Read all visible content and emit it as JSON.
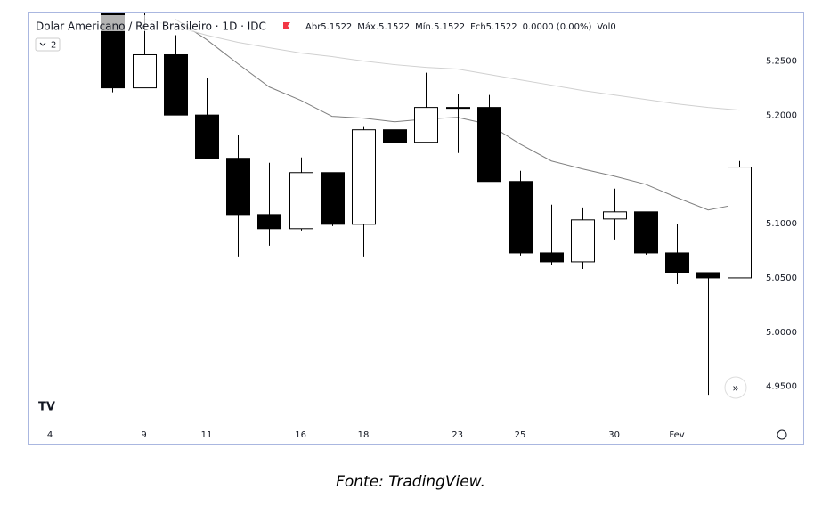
{
  "chart_data": {
    "type": "candlestick",
    "title": "Dolar Americano / Real Brasileiro · 1D · IDC",
    "ohlc_legend": [
      "Abr5.1522",
      "Máx.5.1522",
      "Mín.5.1522",
      "Fch5.1522",
      "0.0000 (0.00%)",
      "Vol0"
    ],
    "indicator_count": "2",
    "caption": "Fonte: TradingView.",
    "categories": [
      "4",
      null,
      null,
      "9",
      null,
      "11",
      null,
      null,
      "16",
      null,
      "18",
      null,
      null,
      "23",
      null,
      "25",
      null,
      null,
      "30",
      null,
      "Fev",
      null,
      null
    ],
    "open": [
      null,
      null,
      5.3,
      5.2253,
      5.2558,
      5.2002,
      5.1603,
      5.1084,
      5.0953,
      5.1471,
      5.0994,
      5.1866,
      5.1751,
      5.2072,
      5.2072,
      5.1389,
      5.073,
      5.0648,
      5.1043,
      5.1109,
      5.073,
      5.0549,
      5.05
    ],
    "high": [
      null,
      null,
      5.31,
      5.3,
      5.2739,
      5.2344,
      5.1817,
      5.1562,
      5.1611,
      5.1471,
      5.1891,
      5.2558,
      5.2393,
      5.2195,
      5.2187,
      5.1488,
      5.1175,
      5.115,
      5.1323,
      5.1109,
      5.0994,
      5.0549,
      5.1578
    ],
    "low": [
      null,
      null,
      5.2212,
      5.2253,
      5.2002,
      5.1603,
      5.0698,
      5.0796,
      5.0936,
      5.0977,
      5.0698,
      5.1751,
      5.1751,
      5.1652,
      5.1389,
      5.0706,
      5.0615,
      5.0582,
      5.0854,
      5.0714,
      5.0442,
      4.9422,
      5.05
    ],
    "close": [
      null,
      null,
      5.2253,
      5.2558,
      5.2002,
      5.1603,
      5.1084,
      5.0953,
      5.1471,
      5.0994,
      5.1866,
      5.1751,
      5.2072,
      5.2072,
      5.1389,
      5.073,
      5.0648,
      5.1035,
      5.1109,
      5.073,
      5.0549,
      5.05,
      5.1522
    ],
    "up_color": "#ffffff",
    "down_color": "#000000",
    "series": [
      {
        "color": "#7f7f7f",
        "values": [
          null,
          null,
          null,
          null,
          5.2887,
          5.2698,
          5.2475,
          5.2261,
          5.2138,
          5.199,
          5.1973,
          5.194,
          5.1965,
          5.1981,
          5.1916,
          5.1735,
          5.1578,
          5.1504,
          5.1438,
          5.1364,
          5.1241,
          5.1126,
          5.1183
        ]
      },
      {
        "color": "#d0d0d0",
        "values": [
          null,
          null,
          null,
          5.2887,
          5.2821,
          5.2739,
          5.2673,
          5.2623,
          5.2574,
          5.2541,
          5.25,
          5.2467,
          5.2442,
          5.2426,
          5.2377,
          5.2327,
          5.2278,
          5.2228,
          5.2187,
          5.2146,
          5.2105,
          5.2072,
          5.2047
        ]
      }
    ],
    "ylim": [
      4.916,
      5.294
    ],
    "yticks": [
      {
        "value": 4.95,
        "label": "4.9500"
      },
      {
        "value": 5.0,
        "label": "5.0000"
      },
      {
        "value": 5.05,
        "label": "5.0500"
      },
      {
        "value": 5.1,
        "label": "5.1000"
      },
      {
        "value": 5.2,
        "label": "5.2000"
      },
      {
        "value": 5.25,
        "label": "5.2500"
      }
    ]
  }
}
